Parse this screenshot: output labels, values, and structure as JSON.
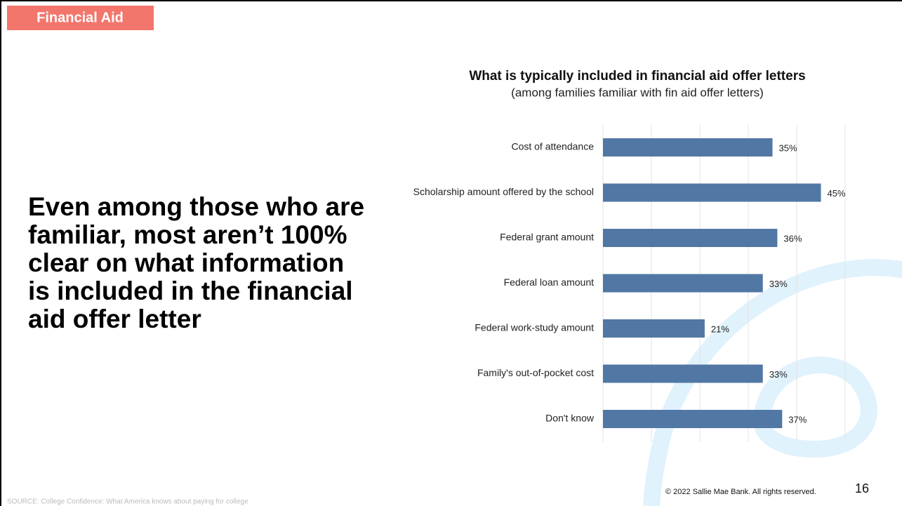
{
  "header": {
    "tag": "Financial Aid"
  },
  "headline": {
    "lines": [
      "Even among those who are",
      "familiar, most aren’t 100%",
      "clear on what information",
      "is included in the financial",
      "aid offer letter"
    ]
  },
  "chart_data": {
    "type": "hbar",
    "title": "What is typically included in financial aid offer letters",
    "subtitle": "(among families familiar with fin aid offer letters)",
    "categories": [
      "Cost of attendance",
      "Scholarship amount offered by the school",
      "Federal grant amount",
      "Federal loan amount",
      "Federal work-study amount",
      "Family's out-of-pocket cost",
      "Don't know"
    ],
    "values": [
      35,
      45,
      36,
      33,
      21,
      33,
      37
    ],
    "value_labels": [
      "35%",
      "45%",
      "36%",
      "33%",
      "21%",
      "33%",
      "37%"
    ],
    "color": "#5177a4",
    "xlim": [
      0,
      50
    ],
    "xticks": [
      0,
      10,
      20,
      30,
      40,
      50
    ],
    "grid": true
  },
  "footer": {
    "source": "SOURCE: College Confidence: What America knows about paying for college",
    "copyright": "© 2022 Sallie Mae Bank. All rights reserved.",
    "page": "16"
  }
}
